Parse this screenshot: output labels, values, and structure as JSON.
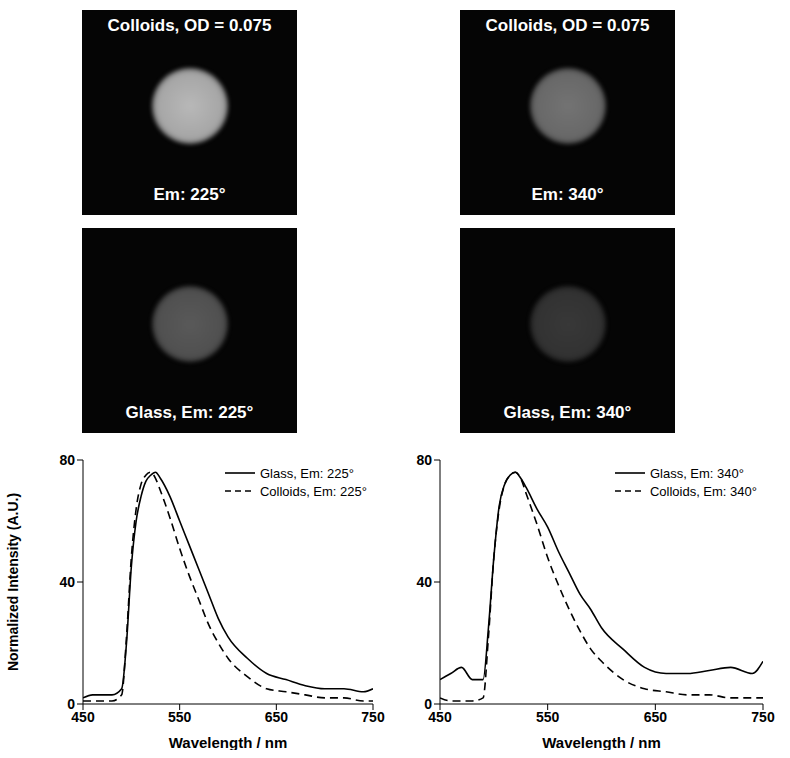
{
  "images": [
    {
      "title": "Colloids, OD = 0.075",
      "label": "Em: 225°"
    },
    {
      "title": "Colloids, OD = 0.075",
      "label": "Em: 340°"
    },
    {
      "label": "Glass, Em: 225°"
    },
    {
      "label": "Glass, Em: 340°"
    }
  ],
  "chart_data": [
    {
      "type": "line",
      "x_label": "Wavelength / nm",
      "y_label": "Normalized Intensity (A.U.)",
      "x": [
        450,
        460,
        470,
        480,
        490,
        495,
        500,
        505,
        510,
        515,
        520,
        525,
        530,
        540,
        550,
        560,
        570,
        580,
        590,
        600,
        620,
        640,
        660,
        680,
        700,
        720,
        740,
        750
      ],
      "series": [
        {
          "name": "Glass, Em: 225°",
          "color": "#000000",
          "line_style": "solid",
          "values": [
            2,
            3,
            3,
            3,
            5,
            20,
            45,
            60,
            68,
            73,
            75,
            76,
            74,
            68,
            60,
            52,
            44,
            36,
            28,
            22,
            15,
            10,
            8,
            6,
            5,
            5,
            4,
            5
          ]
        },
        {
          "name": "Colloids, Em: 225°",
          "color": "#000000",
          "line_style": "dashed",
          "values": [
            1,
            1,
            1,
            1,
            3,
            22,
            48,
            64,
            72,
            75,
            76,
            74,
            70,
            61,
            51,
            42,
            34,
            26,
            20,
            15,
            9,
            5,
            4,
            3,
            2,
            2,
            1,
            1
          ]
        }
      ],
      "xlim": [
        450,
        750
      ],
      "xticks": [
        450,
        550,
        650,
        750
      ],
      "ylim": [
        0,
        80
      ],
      "yticks": [
        0,
        40,
        80
      ],
      "legend": "top-right"
    },
    {
      "type": "line",
      "x_label": "Wavelength / nm",
      "x": [
        450,
        460,
        470,
        480,
        490,
        495,
        500,
        505,
        510,
        515,
        520,
        525,
        530,
        540,
        550,
        560,
        570,
        580,
        590,
        600,
        620,
        640,
        660,
        680,
        700,
        720,
        740,
        750
      ],
      "series": [
        {
          "name": "Glass, Em: 340°",
          "color": "#000000",
          "line_style": "solid",
          "values": [
            8,
            10,
            12,
            8,
            8,
            25,
            48,
            65,
            72,
            75,
            76,
            74,
            71,
            64,
            58,
            50,
            43,
            36,
            31,
            25,
            18,
            12,
            10,
            10,
            11,
            12,
            10,
            14
          ]
        },
        {
          "name": "Colloids, Em: 340°",
          "color": "#000000",
          "line_style": "dashed",
          "values": [
            2,
            1,
            1,
            1,
            2,
            22,
            48,
            64,
            72,
            75,
            76,
            74,
            69,
            59,
            48,
            39,
            31,
            24,
            18,
            14,
            8,
            5,
            4,
            3,
            3,
            2,
            2,
            2
          ]
        }
      ],
      "xlim": [
        450,
        750
      ],
      "xticks": [
        450,
        550,
        650,
        750
      ],
      "ylim": [
        0,
        80
      ],
      "yticks": [
        0,
        40,
        80
      ],
      "legend": "top-right"
    }
  ]
}
